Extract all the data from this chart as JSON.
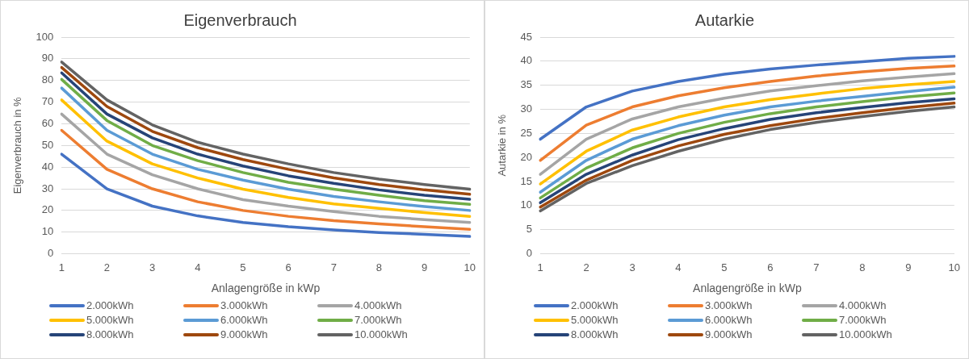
{
  "chart_data": [
    {
      "type": "line",
      "title": "Eigenverbrauch",
      "xlabel": "Anlagengröße in kWp",
      "ylabel": "Eigenverbrauch in %",
      "categories": [
        "1",
        "2",
        "3",
        "4",
        "5",
        "6",
        "7",
        "8",
        "9",
        "10"
      ],
      "ylim": [
        0,
        100
      ],
      "yticks": [
        0,
        10,
        20,
        30,
        40,
        50,
        60,
        70,
        80,
        90,
        100
      ],
      "grid": "y",
      "legend": "bottom",
      "marker": "none",
      "line_style": "solid",
      "series": [
        {
          "name": "2.000kWh",
          "color": "#4472c4",
          "values": [
            46,
            30,
            22,
            17.5,
            14.5,
            12.5,
            11,
            9.8,
            9,
            8
          ]
        },
        {
          "name": "3.000kWh",
          "color": "#ed7d31",
          "values": [
            57,
            39,
            30,
            24,
            20,
            17.3,
            15.3,
            13.8,
            12.5,
            11.3
          ]
        },
        {
          "name": "4.000kWh",
          "color": "#a5a5a5",
          "values": [
            64.5,
            46,
            36.5,
            30,
            25,
            22,
            19.5,
            17.3,
            15.8,
            14.5
          ]
        },
        {
          "name": "5.000kWh",
          "color": "#ffc000",
          "values": [
            71,
            52,
            41.5,
            35,
            29.8,
            26,
            23,
            21,
            19,
            17.3
          ]
        },
        {
          "name": "6.000kWh",
          "color": "#5b9bd5",
          "values": [
            76.5,
            57,
            46,
            39,
            34,
            29.8,
            26.5,
            24,
            21.8,
            20
          ]
        },
        {
          "name": "7.000kWh",
          "color": "#70ad47",
          "values": [
            80.5,
            61.5,
            50,
            43,
            37.5,
            33,
            29.8,
            27,
            24.5,
            22.8
          ]
        },
        {
          "name": "8.000kWh",
          "color": "#264478",
          "values": [
            83.5,
            64.5,
            53.5,
            46,
            40.5,
            36,
            32.5,
            29.5,
            27,
            25.2
          ]
        },
        {
          "name": "9.000kWh",
          "color": "#9e480e",
          "values": [
            86,
            68,
            56.5,
            49,
            43.5,
            39,
            35,
            32,
            29.5,
            27.5
          ]
        },
        {
          "name": "10.000kWh",
          "color": "#636363",
          "values": [
            88.5,
            71,
            59.5,
            51.5,
            46,
            41.5,
            37.5,
            34.5,
            32,
            29.8
          ]
        }
      ]
    },
    {
      "type": "line",
      "title": "Autarkie",
      "xlabel": "Anlagengröße in kWp",
      "ylabel": "Autarkie in %",
      "categories": [
        "1",
        "2",
        "3",
        "4",
        "5",
        "6",
        "7",
        "8",
        "9",
        "10"
      ],
      "ylim": [
        0,
        45
      ],
      "yticks": [
        0,
        5,
        10,
        15,
        20,
        25,
        30,
        35,
        40,
        45
      ],
      "grid": "y",
      "legend": "bottom",
      "marker": "none",
      "line_style": "solid",
      "series": [
        {
          "name": "2.000kWh",
          "color": "#4472c4",
          "values": [
            23.8,
            30.5,
            33.8,
            35.8,
            37.3,
            38.4,
            39.2,
            39.9,
            40.6,
            41
          ]
        },
        {
          "name": "3.000kWh",
          "color": "#ed7d31",
          "values": [
            19.4,
            26.7,
            30.5,
            32.8,
            34.5,
            35.8,
            36.9,
            37.8,
            38.5,
            39
          ]
        },
        {
          "name": "4.000kWh",
          "color": "#a5a5a5",
          "values": [
            16.5,
            23.8,
            28,
            30.5,
            32.3,
            33.8,
            34.9,
            35.9,
            36.7,
            37.4
          ]
        },
        {
          "name": "5.000kWh",
          "color": "#ffc000",
          "values": [
            14.5,
            21.3,
            25.7,
            28.4,
            30.5,
            32,
            33.2,
            34.3,
            35.1,
            35.8
          ]
        },
        {
          "name": "6.000kWh",
          "color": "#5b9bd5",
          "values": [
            12.8,
            19.4,
            23.8,
            26.6,
            28.8,
            30.5,
            31.7,
            32.7,
            33.7,
            34.6
          ]
        },
        {
          "name": "7.000kWh",
          "color": "#70ad47",
          "values": [
            11.6,
            17.8,
            22,
            25,
            27.3,
            29.1,
            30.5,
            31.6,
            32.6,
            33.4
          ]
        },
        {
          "name": "8.000kWh",
          "color": "#264478",
          "values": [
            10.6,
            16.5,
            20.5,
            23.7,
            26,
            27.9,
            29.3,
            30.4,
            31.4,
            32.2
          ]
        },
        {
          "name": "9.000kWh",
          "color": "#9e480e",
          "values": [
            9.7,
            15.3,
            19.4,
            22.4,
            24.8,
            26.6,
            28.1,
            29.3,
            30.4,
            31.3
          ]
        },
        {
          "name": "10.000kWh",
          "color": "#636363",
          "values": [
            8.9,
            14.6,
            18.3,
            21.3,
            23.8,
            25.8,
            27.3,
            28.5,
            29.6,
            30.5
          ]
        }
      ]
    }
  ]
}
